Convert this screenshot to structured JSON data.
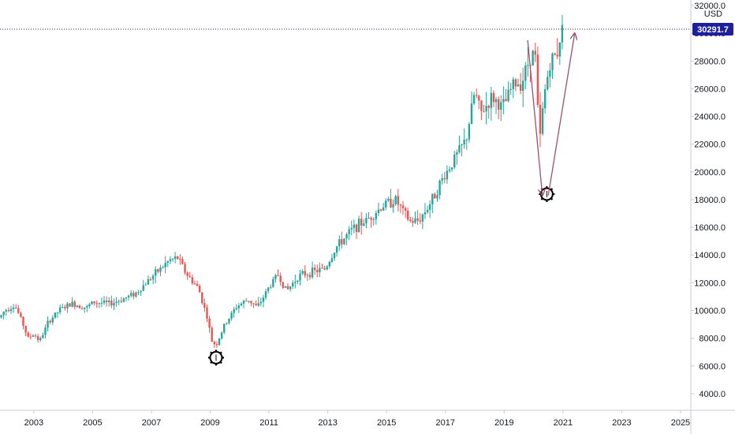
{
  "chart_data": {
    "type": "candlestick",
    "x_unit": "year",
    "xlim": [
      2001.85,
      2025.35
    ],
    "ylim": [
      2800,
      32400
    ],
    "currency": "USD",
    "last_price": 30291.7,
    "last_price_label": "30291.7",
    "y_ticks": [
      4000,
      6000,
      8000,
      10000,
      12000,
      14000,
      16000,
      18000,
      20000,
      22000,
      24000,
      26000,
      28000,
      30000,
      32000
    ],
    "y_tick_labels": [
      "4000.0",
      "6000.0",
      "8000.0",
      "10000.0",
      "12000.0",
      "14000.0",
      "16000.0",
      "18000.0",
      "20000.0",
      "22000.0",
      "24000.0",
      "26000.0",
      "28000.0",
      "30000.0",
      "32000.0"
    ],
    "x_ticks": [
      2003,
      2005,
      2007,
      2009,
      2011,
      2013,
      2015,
      2017,
      2019,
      2021,
      2023,
      2025
    ],
    "x_tick_labels": [
      "2003",
      "2005",
      "2007",
      "2009",
      "2011",
      "2013",
      "2015",
      "2017",
      "2019",
      "2021",
      "2023",
      "2025"
    ],
    "close_path": [
      [
        2001.85,
        9500
      ],
      [
        2002.0,
        10000
      ],
      [
        2002.35,
        10400
      ],
      [
        2002.6,
        9200
      ],
      [
        2002.8,
        8000
      ],
      [
        2003.0,
        8300
      ],
      [
        2003.2,
        7800
      ],
      [
        2003.5,
        9200
      ],
      [
        2003.9,
        10100
      ],
      [
        2004.3,
        10500
      ],
      [
        2004.8,
        10200
      ],
      [
        2005.0,
        10600
      ],
      [
        2005.6,
        10500
      ],
      [
        2006.0,
        10800
      ],
      [
        2006.5,
        11300
      ],
      [
        2006.9,
        12200
      ],
      [
        2007.3,
        13000
      ],
      [
        2007.6,
        13600
      ],
      [
        2007.9,
        13800
      ],
      [
        2008.2,
        12600
      ],
      [
        2008.6,
        11600
      ],
      [
        2008.9,
        9500
      ],
      [
        2009.05,
        7800
      ],
      [
        2009.2,
        7500
      ],
      [
        2009.5,
        9000
      ],
      [
        2009.9,
        10300
      ],
      [
        2010.3,
        10800
      ],
      [
        2010.6,
        10200
      ],
      [
        2011.0,
        11700
      ],
      [
        2011.3,
        12600
      ],
      [
        2011.6,
        11400
      ],
      [
        2012.0,
        12500
      ],
      [
        2012.5,
        12800
      ],
      [
        2012.9,
        13000
      ],
      [
        2013.3,
        14600
      ],
      [
        2013.9,
        16000
      ],
      [
        2014.3,
        16500
      ],
      [
        2014.9,
        17600
      ],
      [
        2015.3,
        18000
      ],
      [
        2015.6,
        17000
      ],
      [
        2015.8,
        16400
      ],
      [
        2016.1,
        16500
      ],
      [
        2016.5,
        17800
      ],
      [
        2016.9,
        19500
      ],
      [
        2017.3,
        20900
      ],
      [
        2017.7,
        22300
      ],
      [
        2018.0,
        25800
      ],
      [
        2018.2,
        24200
      ],
      [
        2018.6,
        25400
      ],
      [
        2018.9,
        24700
      ],
      [
        2019.0,
        24800
      ],
      [
        2019.3,
        26300
      ],
      [
        2019.6,
        26500
      ],
      [
        2019.9,
        28400
      ],
      [
        2020.05,
        28600
      ],
      [
        2020.2,
        21900
      ],
      [
        2020.35,
        25400
      ],
      [
        2020.55,
        27800
      ],
      [
        2020.8,
        28600
      ],
      [
        2020.95,
        30291.7
      ]
    ],
    "annotations": [
      {
        "type": "circle-marker",
        "x": 2009.2,
        "y": 6600
      },
      {
        "type": "circle-marker",
        "x": 2020.45,
        "y": 18400
      },
      {
        "type": "arrow",
        "points": [
          [
            2019.8,
            29500
          ],
          [
            2020.3,
            18300
          ]
        ],
        "color": "#9c4f6e"
      },
      {
        "type": "arrow",
        "points": [
          [
            2020.5,
            18300
          ],
          [
            2021.4,
            30000
          ]
        ],
        "color": "#9c4f6e"
      }
    ],
    "colors": {
      "up": "#26a69a",
      "down": "#ef5350",
      "price_line": "#1e2a8c",
      "badge": "#1e1f9c",
      "arrow": "#9c4f6e"
    }
  }
}
